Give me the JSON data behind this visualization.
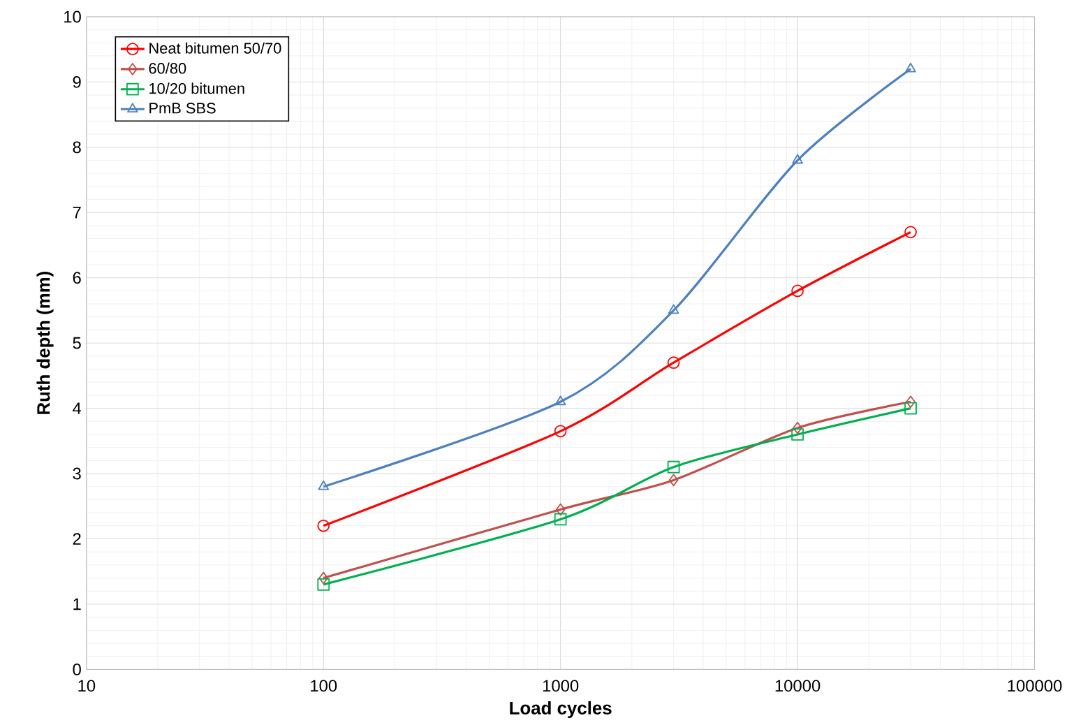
{
  "chart_data": {
    "type": "line",
    "xlabel": "Load cycles",
    "ylabel": "Ruth depth (mm)",
    "x": [
      100,
      1000,
      3000,
      10000,
      30000
    ],
    "series": [
      {
        "name": "Neat bitumen 50/70",
        "color": "#ff0000",
        "marker": "circle",
        "values": [
          2.2,
          3.65,
          4.7,
          5.8,
          6.7
        ]
      },
      {
        "name": "60/80",
        "color": "#c0504d",
        "marker": "diamond",
        "values": [
          1.4,
          2.45,
          2.9,
          3.7,
          4.1
        ]
      },
      {
        "name": "10/20 bitumen",
        "color": "#00b050",
        "marker": "square",
        "values": [
          1.3,
          2.3,
          3.1,
          3.6,
          4.0
        ]
      },
      {
        "name": "PmB SBS",
        "color": "#4f81bd",
        "marker": "triangle",
        "values": [
          2.8,
          4.1,
          5.5,
          7.8,
          9.2
        ]
      }
    ],
    "log": "x",
    "xlim": [
      10,
      100000
    ],
    "xticks": [
      10,
      100,
      1000,
      10000,
      100000
    ],
    "ylim": [
      0,
      10
    ],
    "yticks": [
      0,
      1,
      2,
      3,
      4,
      5,
      6,
      7,
      8,
      9,
      10
    ],
    "grid": true,
    "legend": "top left",
    "line_style": "solid"
  }
}
